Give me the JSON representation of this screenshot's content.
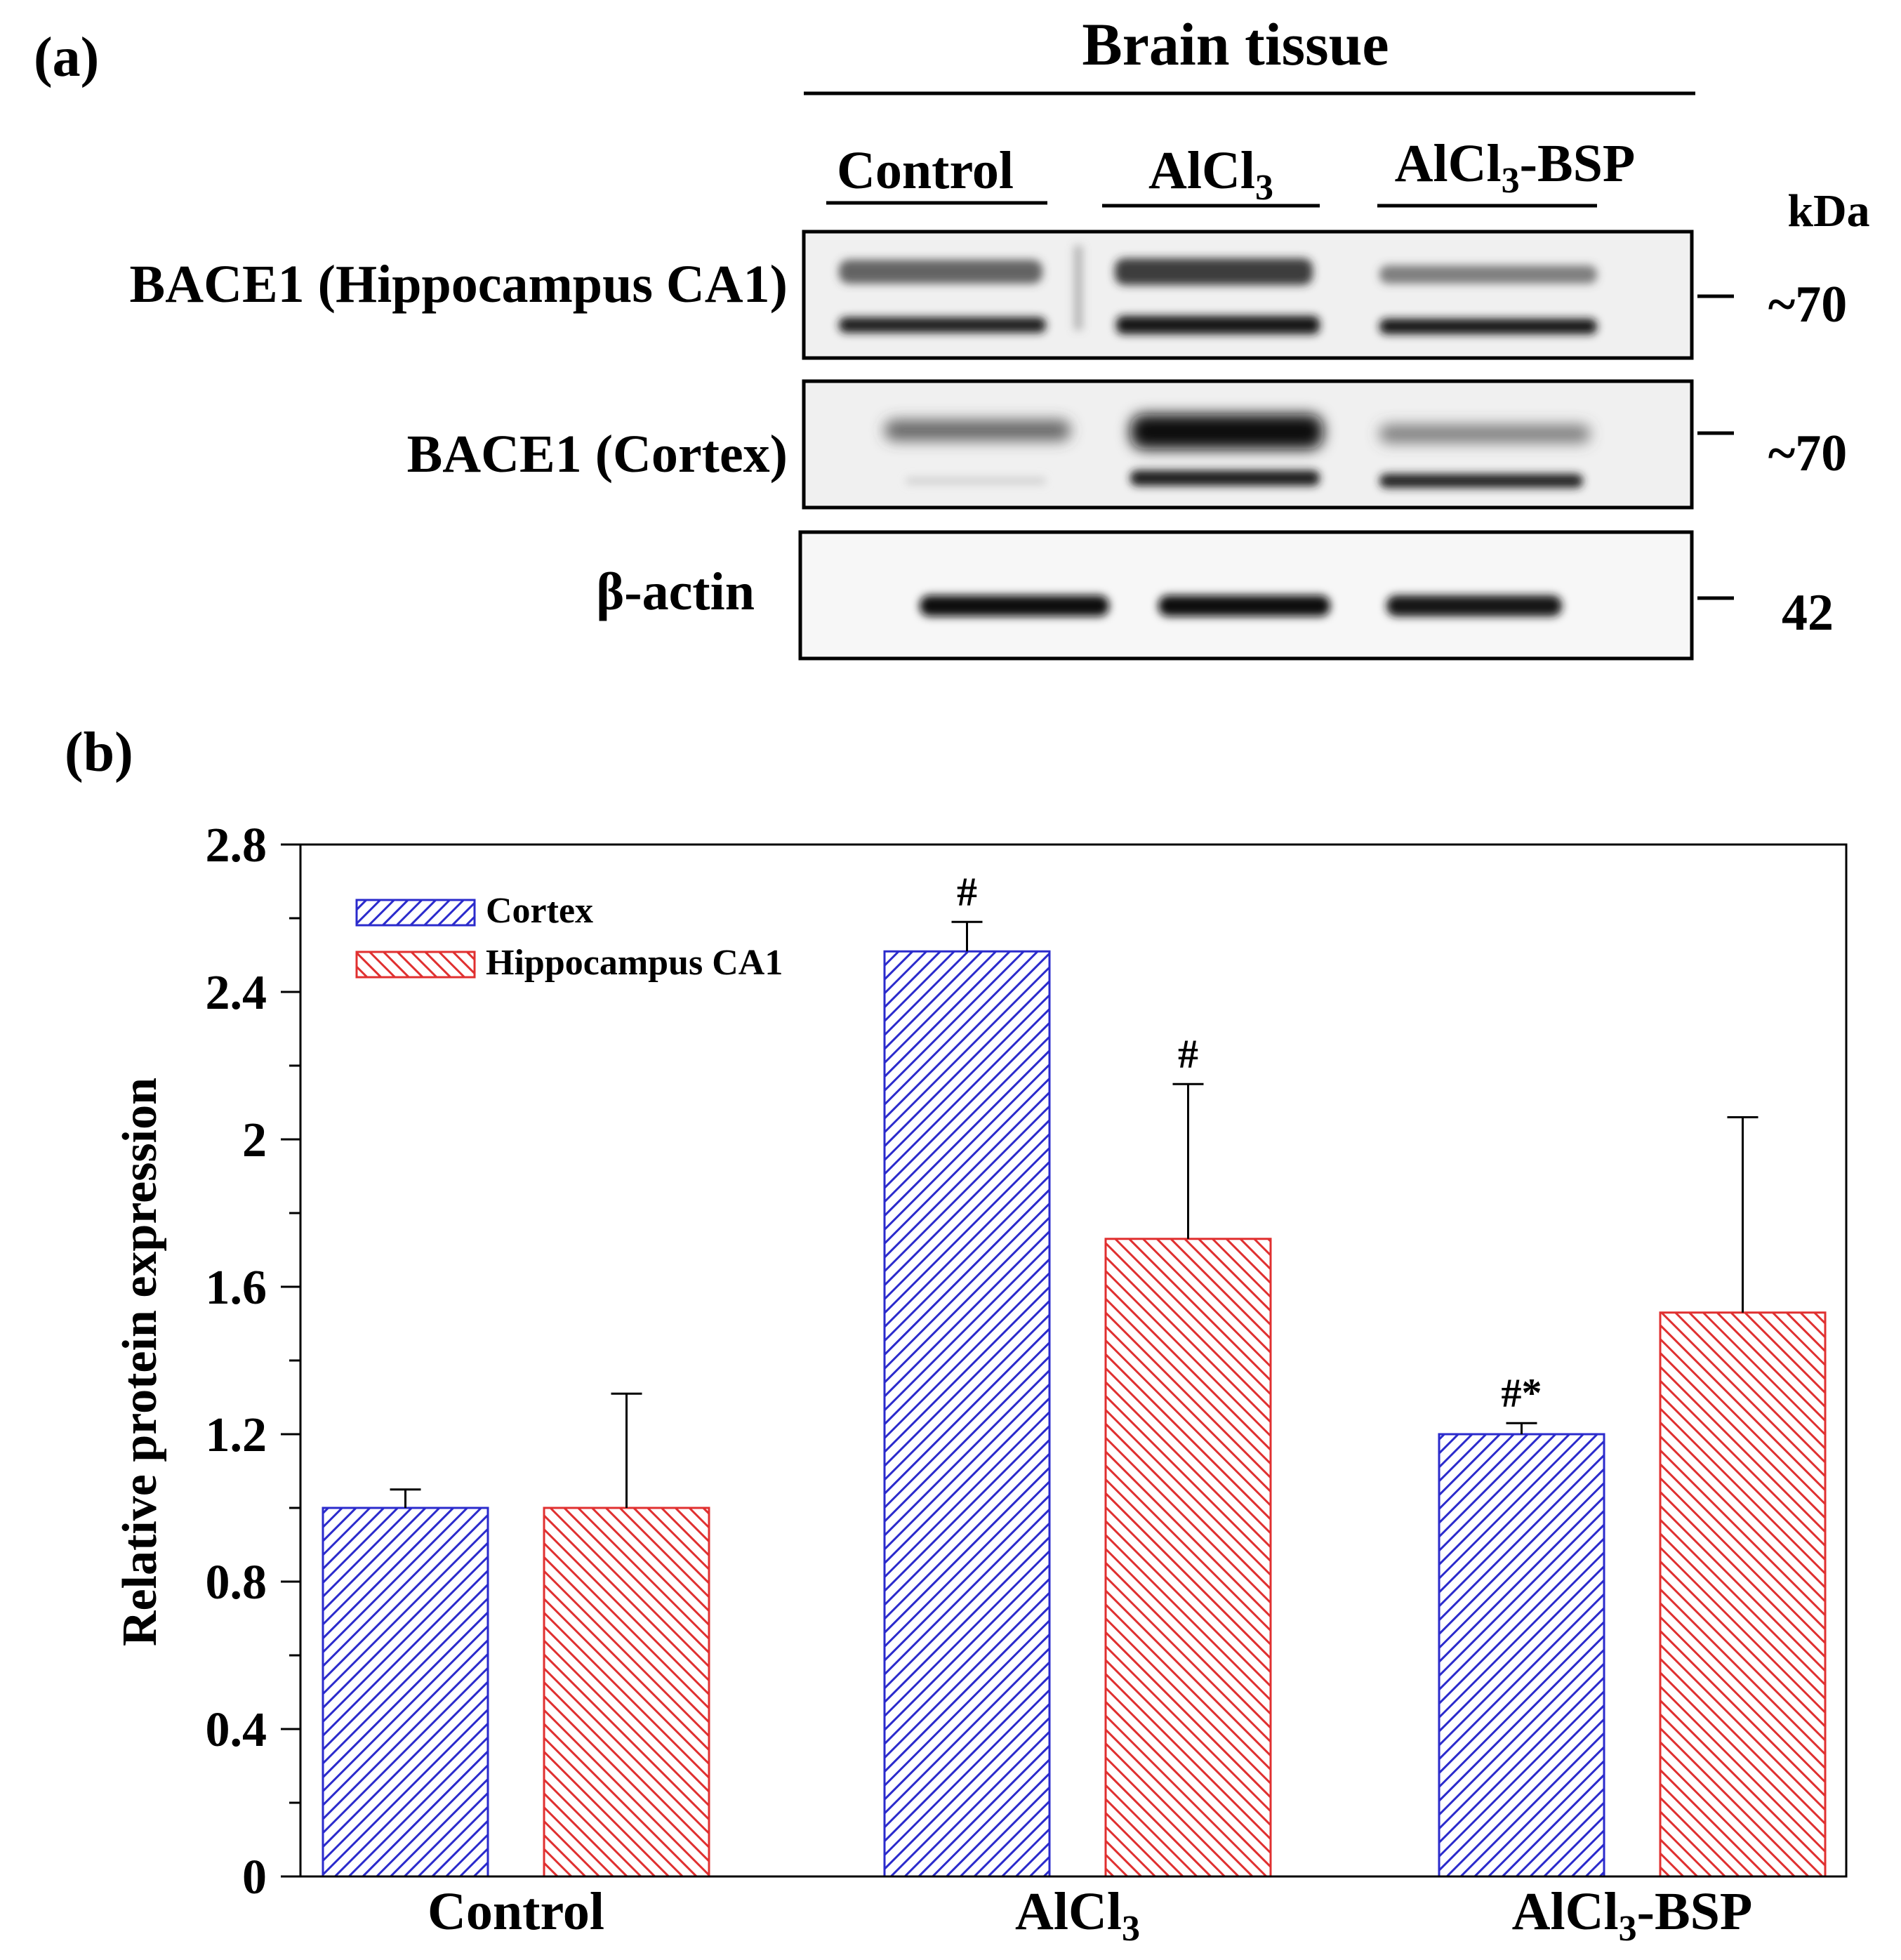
{
  "panel_a": {
    "label": "(a)",
    "header": "Brain tissue",
    "groups": [
      "Control",
      "AlCl",
      "AlCl"
    ],
    "group_subscripts": [
      "",
      "3",
      "3"
    ],
    "group_suffixes": [
      "",
      "",
      "-BSP"
    ],
    "kda_label": "kDa",
    "rows": [
      {
        "label": "BACE1 (Hippocampus CA1)",
        "kda": "~70"
      },
      {
        "label": "BACE1 (Cortex)",
        "kda": "~70"
      },
      {
        "label": "β-actin",
        "kda": "42"
      }
    ]
  },
  "panel_b": {
    "label": "(b)"
  },
  "colors": {
    "cortex": "#2b2bcc",
    "hippocampus": "#e03030",
    "frame": "#000000"
  },
  "chart_data": {
    "type": "bar",
    "title": "",
    "xlabel": "",
    "ylabel": "Relative protein expression",
    "ylim": [
      0,
      2.8
    ],
    "yticks": [
      "0",
      "0.4",
      "0.8",
      "1.2",
      "1.6",
      "2",
      "2.4",
      "2.8"
    ],
    "categories": [
      "Control",
      "AlCl",
      "AlCl"
    ],
    "category_subscripts": [
      "",
      "3",
      "3"
    ],
    "category_suffixes": [
      "",
      "",
      "-BSP"
    ],
    "series": [
      {
        "name": "Cortex",
        "values": [
          1.0,
          2.51,
          1.2
        ],
        "errors": [
          0.05,
          0.08,
          0.03
        ],
        "annotations": [
          "",
          "#",
          "#*"
        ]
      },
      {
        "name": "Hippocampus CA1",
        "values": [
          1.0,
          1.73,
          1.53
        ],
        "errors": [
          0.31,
          0.42,
          0.53
        ],
        "annotations": [
          "",
          "#",
          ""
        ]
      }
    ],
    "legend_position": "top-left"
  }
}
